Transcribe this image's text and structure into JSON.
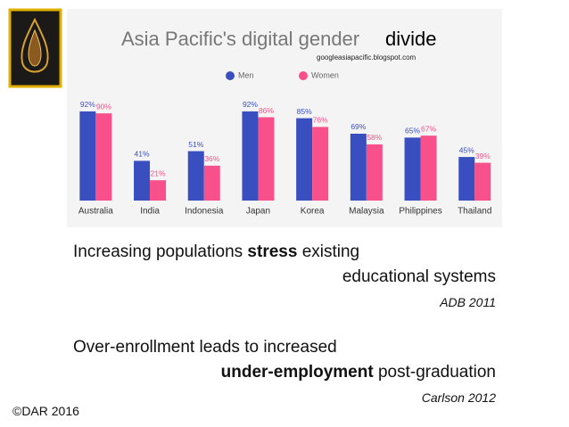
{
  "chart_data": {
    "type": "bar",
    "title": "Asia Pacific's digital gender",
    "title_end": "divide",
    "source": "googleasiapacific.blogspot.com",
    "categories": [
      "Australia",
      "India",
      "Indonesia",
      "Japan",
      "Korea",
      "Malaysia",
      "Philippines",
      "Thailand"
    ],
    "series": [
      {
        "name": "Men",
        "color": "#3a4fbf",
        "values": [
          92,
          41,
          51,
          92,
          85,
          69,
          65,
          45
        ],
        "value_labels": [
          "92%",
          "41%",
          "51%",
          "92%",
          "85%",
          "69%",
          "65%",
          "45%"
        ]
      },
      {
        "name": "Women",
        "color": "#f7508a",
        "values": [
          90,
          21,
          36,
          86,
          76,
          58,
          67,
          39
        ],
        "value_labels": [
          "90%",
          "21%",
          "36%",
          "86%",
          "76%",
          "58%",
          "67%",
          "39%"
        ]
      }
    ]
  },
  "slide": {
    "point1": {
      "line1": [
        {
          "text": "Increasing populations",
          "bold": false
        },
        {
          "text": "stress",
          "bold": true
        },
        {
          "text": "existing",
          "bold": false
        }
      ],
      "line2": [
        {
          "text": "educational systems",
          "bold": false
        }
      ],
      "citation": "ADB 2011"
    },
    "point2": {
      "line1": [
        {
          "text": "Over-enrollment leads to increased",
          "bold": false
        }
      ],
      "line2": [
        {
          "text": "under-employment",
          "bold": true
        },
        {
          "text": "post-graduation",
          "bold": false
        }
      ],
      "citation": "Carlson 2012"
    },
    "copyright": "©DAR 2016"
  }
}
